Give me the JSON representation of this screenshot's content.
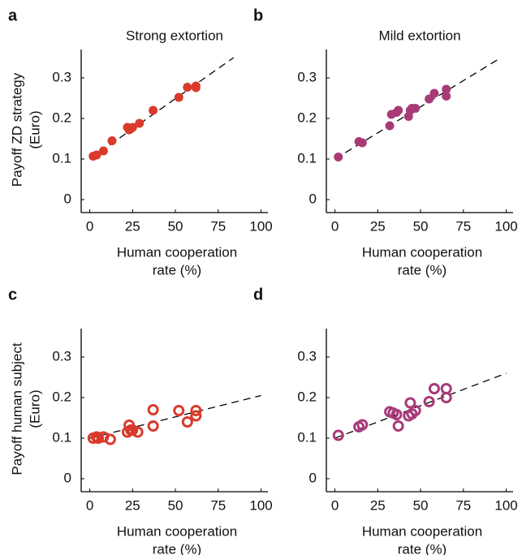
{
  "chart_data": [
    {
      "type": "scatter",
      "panel_label": "a",
      "title": "Strong extortion",
      "ylabel": [
        "Payoff ZD strategy",
        "(Euro)"
      ],
      "xlabel": [
        "Human cooperation",
        "rate (%)"
      ],
      "color": "#d93a2b",
      "marker": "filled",
      "x": [
        2,
        4,
        8,
        13,
        22,
        23,
        24,
        25,
        29,
        37,
        52,
        57,
        62,
        62
      ],
      "values": [
        0.107,
        0.11,
        0.12,
        0.145,
        0.178,
        0.172,
        0.175,
        0.178,
        0.188,
        0.22,
        0.252,
        0.277,
        0.276,
        0.28
      ],
      "fit_line": {
        "x": [
          0,
          84
        ],
        "values": [
          0.1,
          0.35
        ]
      },
      "xlim": [
        -5,
        104
      ],
      "ylim": [
        -0.03,
        0.35
      ],
      "xticks": [
        0,
        25,
        50,
        75,
        100
      ],
      "yticks": [
        0,
        0.1,
        0.2,
        0.3
      ]
    },
    {
      "type": "scatter",
      "panel_label": "b",
      "title": "Mild extortion",
      "xlabel": [
        "Human cooperation",
        "rate (%)"
      ],
      "color": "#a83a78",
      "marker": "filled",
      "x": [
        2,
        14,
        16,
        32,
        33,
        36,
        37,
        43,
        44,
        45,
        47,
        55,
        58,
        65,
        65
      ],
      "values": [
        0.105,
        0.143,
        0.14,
        0.182,
        0.21,
        0.215,
        0.22,
        0.205,
        0.22,
        0.225,
        0.225,
        0.248,
        0.262,
        0.255,
        0.272
      ],
      "fit_line": {
        "x": [
          0,
          97
        ],
        "values": [
          0.1,
          0.35
        ]
      },
      "xlim": [
        -5,
        104
      ],
      "ylim": [
        -0.03,
        0.35
      ],
      "xticks": [
        0,
        25,
        50,
        75,
        100
      ],
      "yticks": [
        0,
        0.1,
        0.2,
        0.3
      ]
    },
    {
      "type": "scatter",
      "panel_label": "c",
      "ylabel": [
        "Payoff human subject",
        "(Euro)"
      ],
      "xlabel": [
        "Human cooperation",
        "rate (%)"
      ],
      "color": "#d93a2b",
      "marker": "open",
      "x": [
        2,
        4,
        5,
        8,
        12,
        22,
        23,
        24,
        25,
        28,
        37,
        37,
        52,
        57,
        62,
        62
      ],
      "values": [
        0.1,
        0.103,
        0.1,
        0.103,
        0.097,
        0.115,
        0.132,
        0.12,
        0.12,
        0.115,
        0.17,
        0.13,
        0.168,
        0.14,
        0.168,
        0.155
      ],
      "fit_line": {
        "x": [
          0,
          100
        ],
        "values": [
          0.1,
          0.205
        ]
      },
      "xlim": [
        -5,
        104
      ],
      "ylim": [
        -0.03,
        0.35
      ],
      "xticks": [
        0,
        25,
        50,
        75,
        100
      ],
      "yticks": [
        0,
        0.1,
        0.2,
        0.3
      ]
    },
    {
      "type": "scatter",
      "panel_label": "d",
      "xlabel": [
        "Human cooperation",
        "rate (%)"
      ],
      "color": "#a83a78",
      "marker": "open",
      "x": [
        2,
        14,
        16,
        32,
        34,
        36,
        37,
        43,
        44,
        45,
        47,
        55,
        58,
        65,
        65
      ],
      "values": [
        0.107,
        0.128,
        0.133,
        0.165,
        0.162,
        0.158,
        0.13,
        0.155,
        0.187,
        0.16,
        0.168,
        0.19,
        0.222,
        0.222,
        0.2
      ],
      "fit_line": {
        "x": [
          0,
          100
        ],
        "values": [
          0.1,
          0.26
        ]
      },
      "xlim": [
        -5,
        104
      ],
      "ylim": [
        -0.03,
        0.35
      ],
      "xticks": [
        0,
        25,
        50,
        75,
        100
      ],
      "yticks": [
        0,
        0.1,
        0.2,
        0.3
      ]
    }
  ]
}
